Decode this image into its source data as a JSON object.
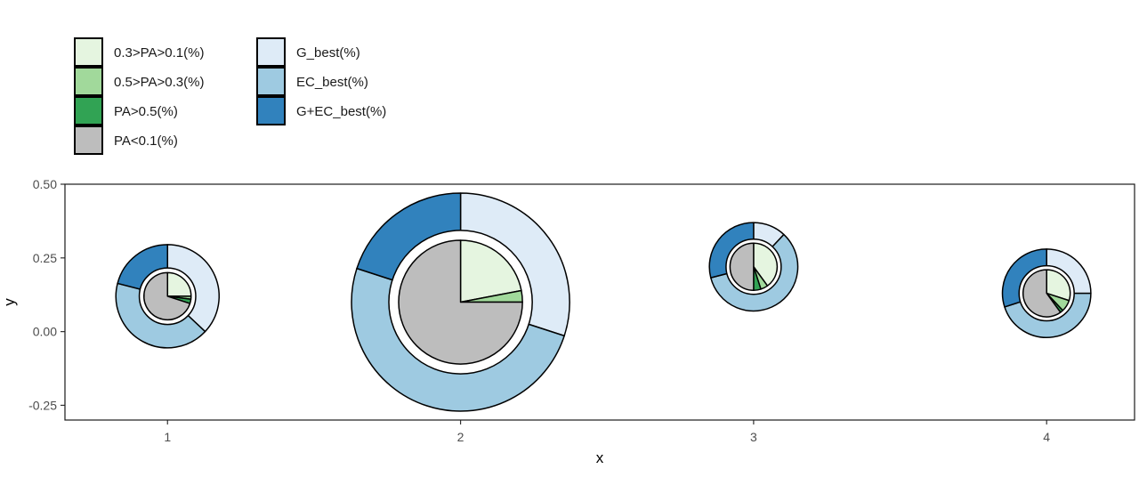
{
  "chart_data": {
    "type": "scatter-pie",
    "xlabel": "x",
    "ylabel": "y",
    "xlim": [
      0.65,
      4.3
    ],
    "ylim": [
      -0.3,
      0.5
    ],
    "x_ticks": [
      1,
      2,
      3,
      4
    ],
    "y_ticks": [
      -0.25,
      0.0,
      0.25,
      0.5
    ],
    "x_tick_labels": [
      "1",
      "2",
      "3",
      "4"
    ],
    "y_tick_labels": [
      "-0.25",
      "0.00",
      "0.25",
      "0.50"
    ],
    "grid": false,
    "legend_position": "top-left",
    "inner_legend": [
      {
        "key": "pa_01_03",
        "label": "0.3>PA>0.1(%)",
        "color": "#e5f5e0"
      },
      {
        "key": "pa_03_05",
        "label": "0.5>PA>0.3(%)",
        "color": "#a1d99b"
      },
      {
        "key": "pa_gt_05",
        "label": "PA>0.5(%)",
        "color": "#31a354"
      },
      {
        "key": "pa_lt_01",
        "label": "PA<0.1(%)",
        "color": "#bdbdbd"
      }
    ],
    "outer_legend": [
      {
        "key": "g_best",
        "label": "G_best(%)",
        "color": "#deebf7"
      },
      {
        "key": "ec_best",
        "label": "EC_best(%)",
        "color": "#9ecae1"
      },
      {
        "key": "gec_best",
        "label": "G+EC_best(%)",
        "color": "#3182bd"
      }
    ],
    "groups": [
      {
        "x": 1,
        "y": 0.12,
        "outer_radius": 0.175,
        "inner_radius": 0.08,
        "outer": {
          "g_best": 37,
          "ec_best": 42,
          "gec_best": 21
        },
        "inner": {
          "pa_01_03": 25,
          "pa_03_05": 2,
          "pa_gt_05": 3,
          "pa_lt_01": 70
        }
      },
      {
        "x": 2,
        "y": 0.1,
        "outer_radius": 0.37,
        "inner_radius": 0.21,
        "outer": {
          "g_best": 30,
          "ec_best": 50,
          "gec_best": 20
        },
        "inner": {
          "pa_01_03": 22,
          "pa_03_05": 3,
          "pa_gt_05": 0,
          "pa_lt_01": 75
        }
      },
      {
        "x": 3,
        "y": 0.22,
        "outer_radius": 0.15,
        "inner_radius": 0.08,
        "outer": {
          "g_best": 12,
          "ec_best": 59,
          "gec_best": 29
        },
        "inner": {
          "pa_01_03": 40,
          "pa_03_05": 5,
          "pa_gt_05": 5,
          "pa_lt_01": 50
        }
      },
      {
        "x": 4,
        "y": 0.13,
        "outer_radius": 0.15,
        "inner_radius": 0.08,
        "outer": {
          "g_best": 25,
          "ec_best": 45,
          "gec_best": 30
        },
        "inner": {
          "pa_01_03": 30,
          "pa_03_05": 8,
          "pa_gt_05": 2,
          "pa_lt_01": 60
        }
      }
    ]
  }
}
